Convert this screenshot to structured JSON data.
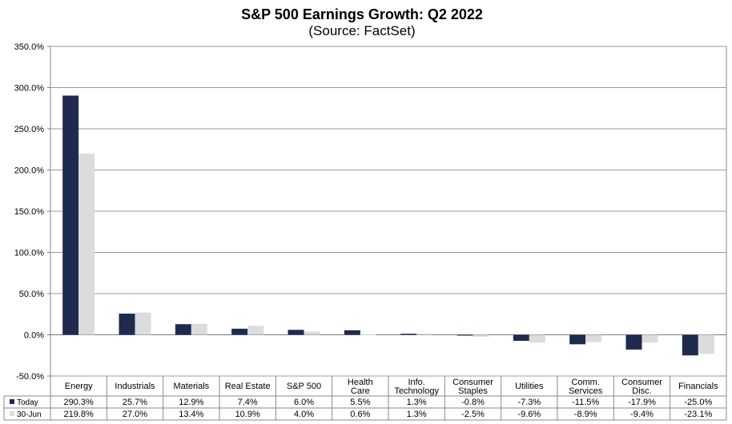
{
  "chart_data": {
    "type": "bar",
    "title": "S&P 500 Earnings Growth: Q2 2022",
    "subtitle": "(Source: FactSet)",
    "categories": [
      [
        "Energy"
      ],
      [
        "Industrials"
      ],
      [
        "Materials"
      ],
      [
        "Real Estate"
      ],
      [
        "S&P 500"
      ],
      [
        "Health",
        "Care"
      ],
      [
        "Info.",
        "Technology"
      ],
      [
        "Consumer",
        "Staples"
      ],
      [
        "Utilities"
      ],
      [
        "Comm.",
        "Services"
      ],
      [
        "Consumer",
        "Disc."
      ],
      [
        "Financials"
      ]
    ],
    "series": [
      {
        "name": "Today",
        "color": "#1f2a4f",
        "values": [
          290.3,
          25.7,
          12.9,
          7.4,
          6.0,
          5.5,
          1.3,
          -0.8,
          -7.3,
          -11.5,
          -17.9,
          -25.0
        ],
        "labels": [
          "290.3%",
          "25.7%",
          "12.9%",
          "7.4%",
          "6.0%",
          "5.5%",
          "1.3%",
          "-0.8%",
          "-7.3%",
          "-11.5%",
          "-17.9%",
          "-25.0%"
        ]
      },
      {
        "name": "30-Jun",
        "color": "#dcdcdc",
        "values": [
          219.8,
          27.0,
          13.4,
          10.9,
          4.0,
          0.6,
          1.3,
          -2.5,
          -9.6,
          -8.9,
          -9.4,
          -23.1
        ],
        "labels": [
          "219.8%",
          "27.0%",
          "13.4%",
          "10.9%",
          "4.0%",
          "0.6%",
          "1.3%",
          "-2.5%",
          "-9.6%",
          "-8.9%",
          "-9.4%",
          "-23.1%"
        ]
      }
    ],
    "ylim": [
      -50,
      350
    ],
    "yticks": [
      -50,
      0,
      50,
      100,
      150,
      200,
      250,
      300,
      350
    ],
    "ytick_labels": [
      "-50.0%",
      "0.0%",
      "50.0%",
      "100.0%",
      "150.0%",
      "200.0%",
      "250.0%",
      "300.0%",
      "350.0%"
    ],
    "grid": true,
    "data_table": true
  }
}
